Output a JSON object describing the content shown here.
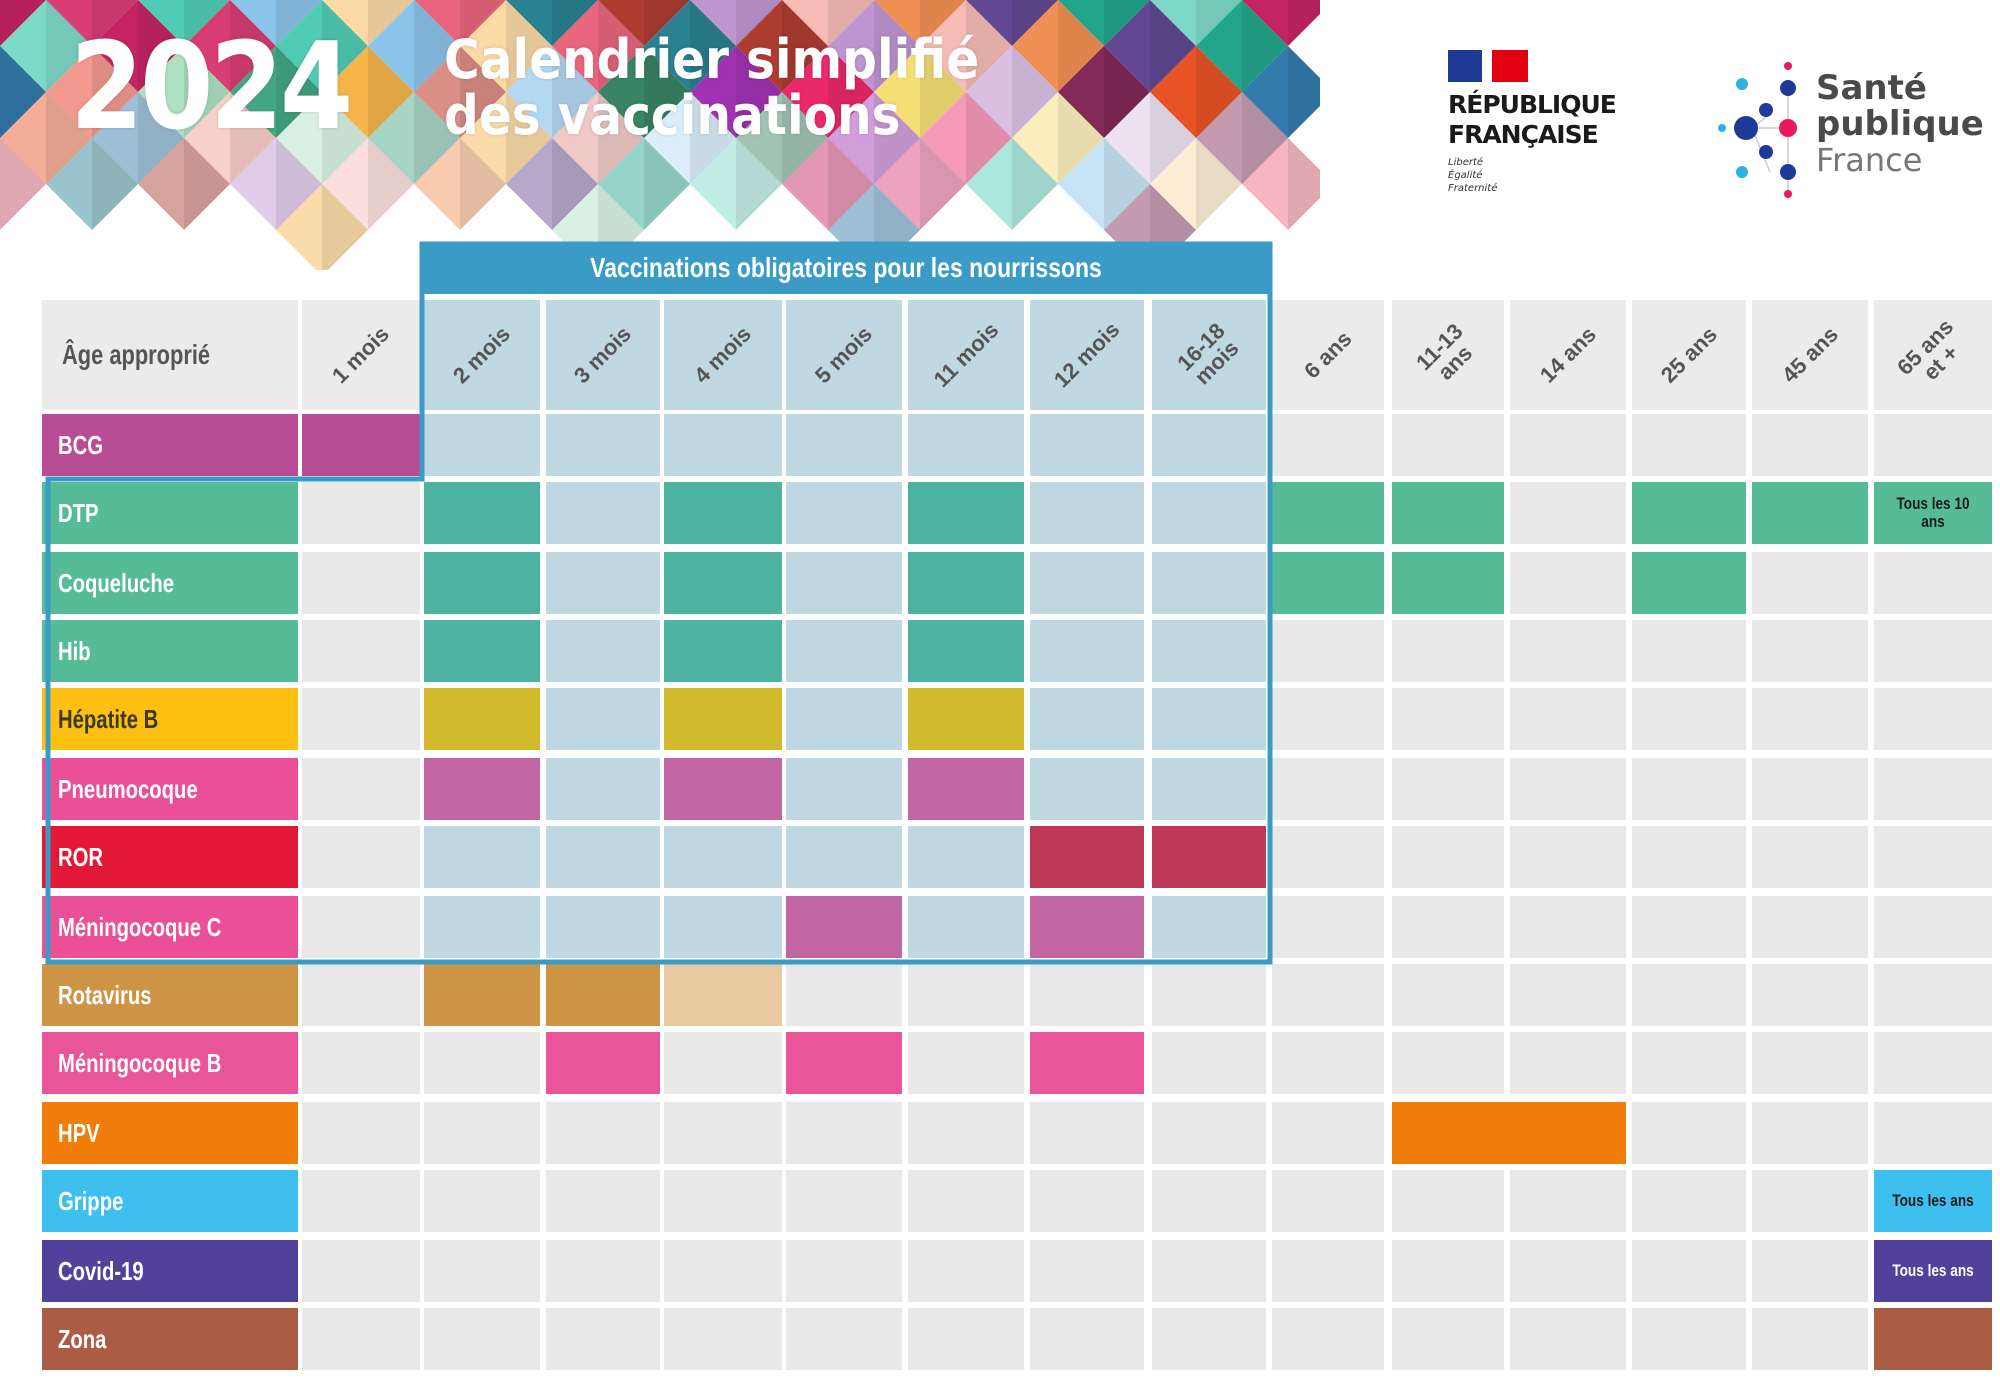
{
  "header": {
    "year": "2024",
    "title_line1": "Calendrier simplifié",
    "title_line2": "des vaccinations"
  },
  "logos": {
    "republique": {
      "line1": "RÉPUBLIQUE",
      "line2": "FRANÇAISE",
      "motto": [
        "Liberté",
        "Égalité",
        "Fraternité"
      ]
    },
    "sante_publique": {
      "line1": "Santé",
      "line2": "publique",
      "line3": "France"
    }
  },
  "infant_banner": "Vaccinations obligatoires pour les nourrissons",
  "age_header": "Âge approprié",
  "colors": {
    "infant_frame": "#3a9cc6",
    "infant_cell": "#c0d8e2",
    "empty_cell": "#e8e8e8"
  },
  "chart_data": {
    "type": "table",
    "title": "2024 Calendrier simplifié des vaccinations",
    "columns": [
      "1 mois",
      "2 mois",
      "3 mois",
      "4 mois",
      "5 mois",
      "11 mois",
      "12 mois",
      "16-18 mois",
      "6 ans",
      "11-13 ans",
      "14 ans",
      "25 ans",
      "45 ans",
      "65 ans et +"
    ],
    "infant_mandatory_columns": [
      1,
      2,
      3,
      4,
      5,
      6,
      7
    ],
    "infant_mandatory_rows": [
      "DTP",
      "Coqueluche",
      "Hib",
      "Hépatite B",
      "Pneumocoque",
      "ROR",
      "Méningocoque C"
    ],
    "rows": [
      {
        "name": "BCG",
        "color": "#b84d96",
        "cell_color": "#b84d96",
        "doses": [
          0
        ],
        "notes": {}
      },
      {
        "name": "DTP",
        "color": "#56bb97",
        "cell_color": "#4fb3a2",
        "outer_color": "#56bb97",
        "doses": [
          1,
          3,
          5,
          8,
          9,
          11,
          12,
          13
        ],
        "notes": {
          "13": "Tous les 10 ans"
        }
      },
      {
        "name": "Coqueluche",
        "color": "#56bb97",
        "cell_color": "#4fb3a2",
        "outer_color": "#56bb97",
        "doses": [
          1,
          3,
          5,
          8,
          9,
          11
        ],
        "notes": {}
      },
      {
        "name": "Hib",
        "color": "#56bb97",
        "cell_color": "#4fb3a2",
        "doses": [
          1,
          3,
          5
        ],
        "notes": {}
      },
      {
        "name": "Hépatite B",
        "color": "#fdc010",
        "cell_color": "#d1bb2b",
        "label_dark": true,
        "doses": [
          1,
          3,
          5
        ],
        "notes": {}
      },
      {
        "name": "Pneumocoque",
        "color": "#ea4f98",
        "cell_color": "#c266a3",
        "doses": [
          1,
          3,
          5
        ],
        "notes": {}
      },
      {
        "name": "ROR",
        "color": "#e31837",
        "cell_color": "#be3a58",
        "doses": [
          6,
          7
        ],
        "notes": {}
      },
      {
        "name": "Méningocoque C",
        "color": "#ea4f98",
        "cell_color": "#c266a3",
        "doses": [
          4,
          6
        ],
        "notes": {}
      },
      {
        "name": "Rotavirus",
        "color": "#cd9445",
        "cell_color": "#cd9445",
        "doses": [
          1,
          2,
          3
        ],
        "light_doses": [
          3
        ],
        "light_color": "#e8c9a0",
        "notes": {}
      },
      {
        "name": "Méningocoque B",
        "color": "#ea5498",
        "cell_color": "#ea5498",
        "doses": [
          2,
          4,
          6
        ],
        "notes": {}
      },
      {
        "name": "HPV",
        "color": "#f07d09",
        "cell_color": "#f07d09",
        "doses": [
          9,
          10
        ],
        "span": [
          9,
          10
        ],
        "notes": {}
      },
      {
        "name": "Grippe",
        "color": "#3dbfef",
        "cell_color": "#3dbfef",
        "doses": [
          13
        ],
        "notes": {
          "13": "Tous les ans"
        }
      },
      {
        "name": "Covid-19",
        "color": "#52419a",
        "cell_color": "#52419a",
        "doses": [
          13
        ],
        "notes": {
          "13": "Tous les ans"
        }
      },
      {
        "name": "Zona",
        "color": "#aa5c45",
        "cell_color": "#aa5c45",
        "doses": [
          13
        ],
        "notes": {}
      }
    ]
  }
}
